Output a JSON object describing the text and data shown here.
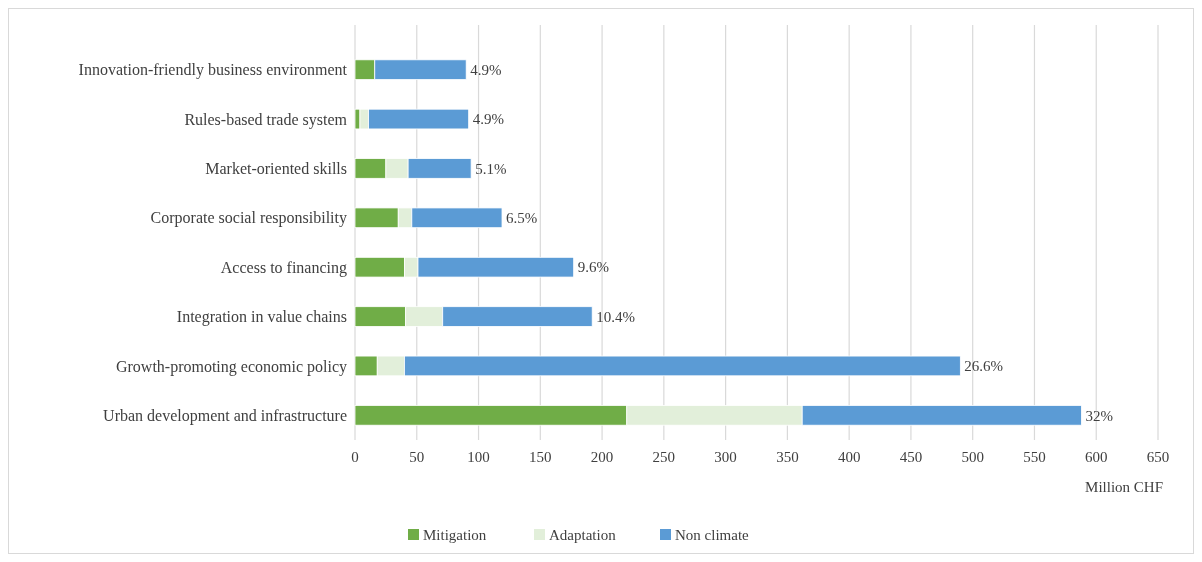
{
  "chart_data": {
    "type": "bar",
    "orientation": "horizontal",
    "stacked": true,
    "categories": [
      "Innovation-friendly business environment",
      "Rules-based trade system",
      "Market-oriented skills",
      "Corporate social responsibility",
      "Access to financing",
      "Integration in value chains",
      "Growth-promoting economic policy",
      "Urban development and infrastructure"
    ],
    "series": [
      {
        "name": "Mitigation",
        "color": "#70ad47",
        "values": [
          16,
          4,
          25,
          35,
          40,
          41,
          18,
          220
        ]
      },
      {
        "name": "Adaptation",
        "color": "#e2efda",
        "values": [
          0,
          7,
          18,
          11,
          11,
          30,
          22,
          142
        ]
      },
      {
        "name": "Non climate",
        "color": "#5b9bd5",
        "values": [
          74,
          81,
          51,
          73,
          126,
          121,
          450,
          226
        ]
      }
    ],
    "annotations": [
      {
        "text": "4.9%",
        "x": 90,
        "y": "Innovation-friendly business environment"
      },
      {
        "text": "4.9%",
        "x": 92,
        "y": "Rules-based trade system"
      },
      {
        "text": "5.1%",
        "x": 94,
        "y": "Market-oriented skills"
      },
      {
        "text": "6.5%",
        "x": 119,
        "y": "Corporate social responsibility"
      },
      {
        "text": "9.6%",
        "x": 177,
        "y": "Access to financing"
      },
      {
        "text": "10.4%",
        "x": 192,
        "y": "Integration in value chains"
      },
      {
        "text": "26.6%",
        "x": 490,
        "y": "Growth-promoting economic policy"
      },
      {
        "text": "32%",
        "x": 588,
        "y": "Urban development and infrastructure"
      }
    ],
    "xlim": [
      0,
      650
    ],
    "xticks": [
      0,
      50,
      100,
      150,
      200,
      250,
      300,
      350,
      400,
      450,
      500,
      550,
      600,
      650
    ],
    "xlabel": "Million CHF",
    "grid": "x",
    "legend": "bottom"
  }
}
